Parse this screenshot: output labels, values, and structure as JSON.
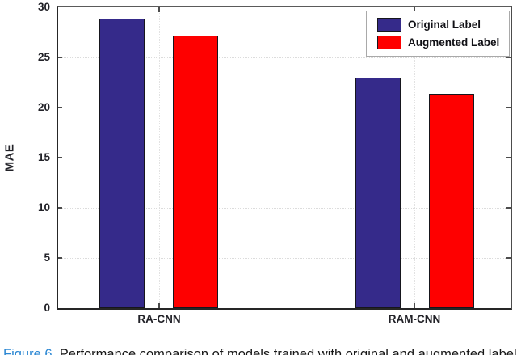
{
  "figure": {
    "ylabel": "MAE",
    "caption_prefix": "Figure 6.",
    "caption_text": "Performance comparison of models trained with original and augmented labels."
  },
  "chart_data": {
    "type": "bar",
    "title": "",
    "xlabel": "",
    "ylabel": "MAE",
    "categories": [
      "RA-CNN",
      "RAM-CNN"
    ],
    "series": [
      {
        "name": "Original Label",
        "color": "#352a8a",
        "values": [
          28.9,
          23.0
        ]
      },
      {
        "name": "Augmented Label",
        "color": "#fe0000",
        "values": [
          27.2,
          21.4
        ]
      }
    ],
    "ylim": [
      0,
      30
    ],
    "yticks": [
      0,
      5,
      10,
      15,
      20,
      25,
      30
    ],
    "grid": true,
    "legend_position": "top-right",
    "colors": {
      "axis": "#262626",
      "grid": "#dcdcdc",
      "bar_edge": "#16161d"
    }
  }
}
